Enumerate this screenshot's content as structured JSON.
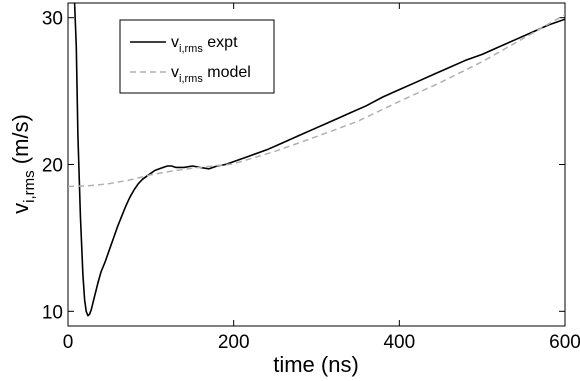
{
  "chart_data": {
    "type": "line",
    "xlabel": "time (ns)",
    "ylabel": {
      "base": "v",
      "sub": "i,rms",
      "unit": " (m/s)"
    },
    "xlim": [
      0,
      600
    ],
    "ylim": [
      9,
      31
    ],
    "xticks": [
      0,
      200,
      400,
      600
    ],
    "yticks": [
      10,
      20,
      30
    ],
    "grid": false,
    "legend_position": "top-left",
    "series": [
      {
        "name": {
          "base": "v",
          "sub": "i,rms",
          "suffix": " expt"
        },
        "style": "solid",
        "color": "#000000",
        "x": [
          8,
          10,
          12,
          15,
          18,
          20,
          22,
          24,
          26,
          28,
          32,
          36,
          40,
          45,
          50,
          55,
          60,
          65,
          70,
          75,
          80,
          85,
          90,
          95,
          100,
          105,
          110,
          115,
          120,
          125,
          130,
          140,
          150,
          160,
          170,
          180,
          190,
          200,
          220,
          240,
          260,
          280,
          300,
          320,
          340,
          360,
          380,
          400,
          420,
          440,
          460,
          480,
          500,
          520,
          540,
          560,
          580,
          590,
          600
        ],
        "y": [
          31,
          28,
          22,
          16.5,
          12.5,
          10.8,
          10.0,
          9.7,
          9.8,
          10.1,
          11.0,
          11.9,
          12.7,
          13.4,
          14.2,
          15.0,
          15.8,
          16.5,
          17.2,
          17.8,
          18.3,
          18.7,
          19.0,
          19.2,
          19.4,
          19.6,
          19.7,
          19.8,
          19.9,
          19.9,
          19.8,
          19.8,
          19.9,
          19.8,
          19.7,
          19.9,
          20.0,
          20.2,
          20.6,
          21.0,
          21.5,
          22.0,
          22.5,
          23.0,
          23.5,
          24.0,
          24.6,
          25.1,
          25.6,
          26.1,
          26.6,
          27.1,
          27.5,
          28.0,
          28.5,
          29.0,
          29.5,
          29.7,
          29.9
        ]
      },
      {
        "name": {
          "base": "v",
          "sub": "i,rms",
          "suffix": " model"
        },
        "style": "dashed",
        "color": "#b0b0b0",
        "x": [
          0,
          25,
          50,
          75,
          100,
          125,
          150,
          175,
          200,
          250,
          300,
          350,
          400,
          450,
          500,
          550,
          600
        ],
        "y": [
          18.5,
          18.55,
          18.7,
          18.95,
          19.3,
          19.55,
          19.75,
          19.9,
          20.05,
          20.9,
          21.9,
          22.95,
          24.3,
          25.6,
          27.0,
          28.6,
          30.2
        ]
      }
    ]
  }
}
